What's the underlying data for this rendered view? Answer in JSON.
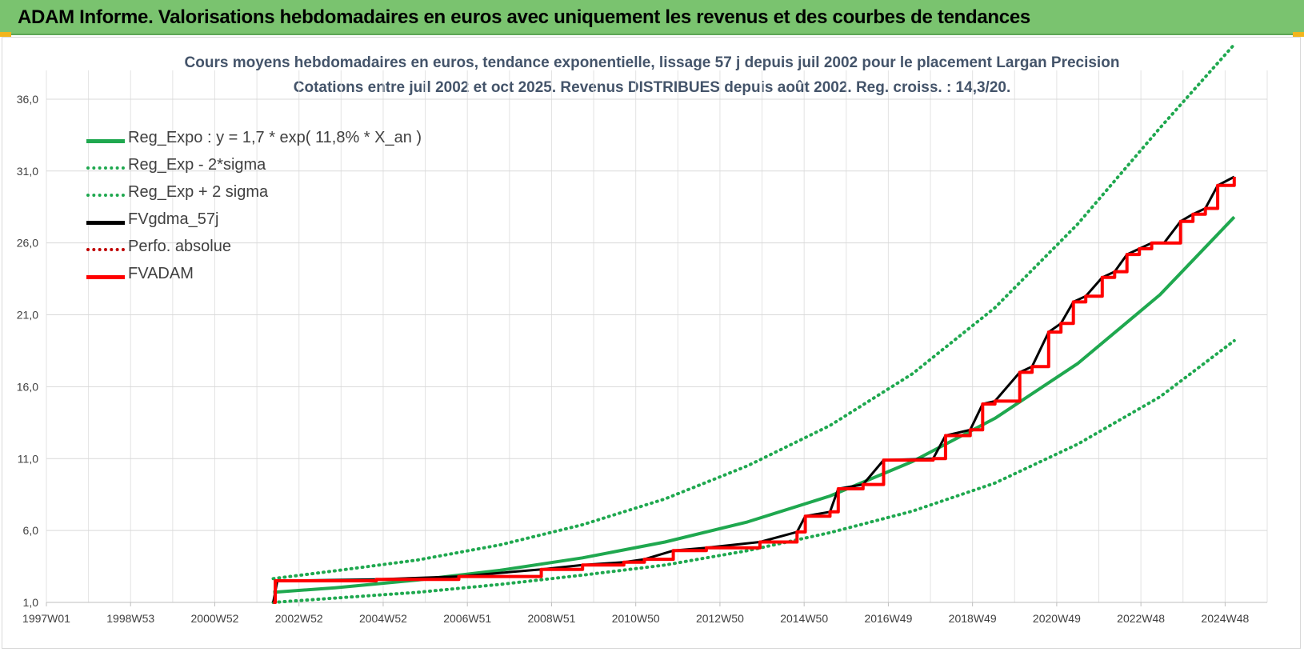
{
  "header": {
    "title": "ADAM Informe. Valorisations hebdomadaires en euros avec uniquement les revenus et des courbes de tendances"
  },
  "chart_data": {
    "type": "line",
    "title_line1": "Cours moyens hebdomadaires en euros, tendance exponentielle, lissage 57 j depuis juil 2002 pour le placement Largan Precision",
    "title_line2": "Cotations entre juil 2002 et oct 2025. Revenus DISTRIBUES depuis août 2002. Reg. croiss. : 14,3/20.",
    "xlabel": "",
    "ylabel": "",
    "x_tick_labels": [
      "1997W01",
      "1998W53",
      "2000W52",
      "2002W52",
      "2004W52",
      "2006W51",
      "2008W51",
      "2010W50",
      "2012W50",
      "2014W50",
      "2016W49",
      "2018W49",
      "2020W49",
      "2022W48",
      "2024W48"
    ],
    "x_range": [
      1997.0,
      2026.6
    ],
    "y_tick_labels": [
      "1,0",
      "6,0",
      "11,0",
      "16,0",
      "21,0",
      "26,0",
      "31,0",
      "36,0"
    ],
    "ylim": [
      1,
      38
    ],
    "grid": true,
    "legend_position": "top-left",
    "series": [
      {
        "name": "Reg_Expo : y = 1,7 * exp( 11,8% *  X_an )",
        "color": "#1fa84f",
        "style": "solid",
        "x": [
          2002.5,
          2004,
          2006,
          2008,
          2010,
          2012,
          2014,
          2016,
          2018,
          2020,
          2022,
          2024,
          2025.8
        ],
        "y": [
          1.7,
          2.02,
          2.56,
          3.23,
          4.1,
          5.2,
          6.6,
          8.4,
          10.8,
          13.8,
          17.6,
          22.4,
          27.8
        ]
      },
      {
        "name": "Reg_Exp - 2*sigma",
        "color": "#1fa84f",
        "style": "dotted",
        "x": [
          2002.5,
          2004,
          2006,
          2008,
          2010,
          2012,
          2014,
          2016,
          2018,
          2020,
          2022,
          2024,
          2025.8
        ],
        "y": [
          1.0,
          1.3,
          1.7,
          2.25,
          2.9,
          3.6,
          4.6,
          5.85,
          7.35,
          9.3,
          12.0,
          15.3,
          19.2
        ]
      },
      {
        "name": "Reg_Exp + 2 sigma",
        "color": "#1fa84f",
        "style": "dotted",
        "x": [
          2002.5,
          2004,
          2006,
          2008,
          2010,
          2012,
          2014,
          2016,
          2018,
          2020,
          2022,
          2024,
          2025.8
        ],
        "y": [
          2.65,
          3.2,
          3.95,
          5.0,
          6.4,
          8.2,
          10.5,
          13.3,
          16.9,
          21.5,
          27.3,
          34.0,
          39.8
        ]
      },
      {
        "name": "FVgdma_57j",
        "color": "#000000",
        "style": "solid",
        "x": [
          2002.5,
          2002.6,
          2005,
          2007,
          2009,
          2010,
          2011,
          2011.5,
          2012.2,
          2013,
          2014.3,
          2015.2,
          2015.4,
          2016,
          2016.2,
          2016.8,
          2017.3,
          2018.5,
          2018.8,
          2019.4,
          2019.7,
          2020.0,
          2020.6,
          2020.9,
          2021.3,
          2021.6,
          2021.9,
          2022.2,
          2022.6,
          2022.9,
          2023.2,
          2023.5,
          2023.8,
          2024.1,
          2024.5,
          2024.8,
          2025.1,
          2025.4,
          2025.8
        ],
        "y": [
          1.0,
          2.5,
          2.6,
          2.8,
          3.3,
          3.6,
          3.8,
          4.0,
          4.6,
          4.8,
          5.2,
          5.9,
          7.0,
          7.3,
          8.9,
          9.2,
          10.9,
          11.0,
          12.6,
          13.0,
          14.8,
          15.0,
          17.0,
          17.4,
          19.8,
          20.4,
          21.9,
          22.3,
          23.6,
          24.0,
          25.2,
          25.6,
          26.0,
          26.0,
          27.5,
          28.0,
          28.4,
          30.0,
          30.6
        ]
      },
      {
        "name": "Perfo. absolue",
        "color": "#c00000",
        "style": "dotted",
        "x": [],
        "y": []
      },
      {
        "name": "FVADAM",
        "color": "#ff0000",
        "style": "solid",
        "x": [
          2002.5,
          2002.55,
          2005,
          2007,
          2009,
          2010,
          2011,
          2011.5,
          2012.2,
          2013,
          2014.3,
          2015.2,
          2015.4,
          2016,
          2016.2,
          2016.8,
          2017.3,
          2018.5,
          2018.8,
          2019.4,
          2019.7,
          2020.0,
          2020.6,
          2020.9,
          2021.3,
          2021.6,
          2021.9,
          2022.2,
          2022.6,
          2022.9,
          2023.2,
          2023.5,
          2023.8,
          2024.1,
          2024.5,
          2024.8,
          2025.1,
          2025.4,
          2025.8
        ],
        "y": [
          1.0,
          2.5,
          2.6,
          2.8,
          3.3,
          3.6,
          3.8,
          4.0,
          4.6,
          4.8,
          5.2,
          5.9,
          7.0,
          7.3,
          8.9,
          9.2,
          10.9,
          11.0,
          12.6,
          13.0,
          14.8,
          15.0,
          17.0,
          17.4,
          19.8,
          20.4,
          21.9,
          22.3,
          23.6,
          24.0,
          25.2,
          25.6,
          26.0,
          26.0,
          27.5,
          28.0,
          28.4,
          30.0,
          30.6
        ]
      }
    ]
  }
}
